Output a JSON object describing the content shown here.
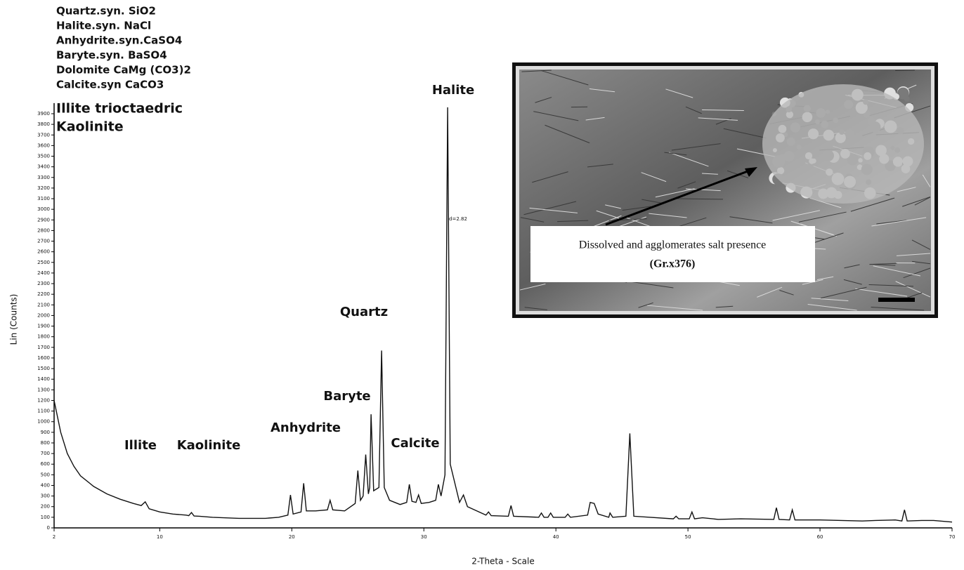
{
  "chart_data": {
    "type": "line",
    "phases": [
      "Quartz.syn. SiO2",
      "Halite.syn. NaCl",
      "Anhydrite.syn.CaSO4",
      "Baryte.syn. BaSO4",
      "Dolomite  CaMg (CO3)2",
      "Calcite.syn CaCO3",
      "Illite trioctaedric",
      "Kaolinite"
    ],
    "x_label": "2-Theta - Scale",
    "y_label": "Lin (Counts)",
    "annotations": [
      "Illite",
      "Kaolinite",
      "Anhydrite",
      "Baryte",
      "Quartz",
      "Calcite",
      "Halite",
      "d=2.82"
    ],
    "inset_caption": [
      "Dissolved and agglomerates salt presence",
      "(Gr.x376)"
    ],
    "color": "#111111",
    "xlim": [
      2,
      70
    ],
    "xticks": [
      2,
      10,
      20,
      30,
      40,
      50,
      60,
      70
    ],
    "ylim": [
      0,
      4000
    ],
    "yticks": [
      0,
      100,
      200,
      300,
      400,
      500,
      600,
      700,
      800,
      900,
      1000,
      1100,
      1200,
      1300,
      1400,
      1500,
      1600,
      1700,
      1800,
      1900,
      2000,
      2100,
      2200,
      2300,
      2400,
      2500,
      2600,
      2700,
      2800,
      2900,
      3000,
      3100,
      3200,
      3300,
      3400,
      3500,
      3600,
      3700,
      3800,
      3900
    ],
    "x": [
      2,
      2.5,
      3,
      3.5,
      4,
      5,
      6,
      7,
      8,
      8.6,
      8.9,
      9.2,
      10,
      11,
      12,
      12.2,
      12.4,
      12.6,
      13,
      14,
      16,
      18,
      19,
      19.7,
      19.9,
      20.1,
      20.7,
      20.9,
      21.1,
      21.8,
      22.7,
      22.9,
      23.1,
      24,
      24.8,
      25,
      25.2,
      25.4,
      25.6,
      25.8,
      25.9,
      26.0,
      26.2,
      26.6,
      26.8,
      27.0,
      27.4,
      28.2,
      28.7,
      28.9,
      29.1,
      29.4,
      29.6,
      29.8,
      30.4,
      30.9,
      31.1,
      31.3,
      31.6,
      31.8,
      32.0,
      32.7,
      33.0,
      33.3,
      34.7,
      34.9,
      35.1,
      36.4,
      36.6,
      36.8,
      38.7,
      38.9,
      39.1,
      39.4,
      39.6,
      39.8,
      40.7,
      40.9,
      41.1,
      42.4,
      42.6,
      42.9,
      43.2,
      44.0,
      44.1,
      44.3,
      45.3,
      45.6,
      45.9,
      48.9,
      49.1,
      49.3,
      50.1,
      50.3,
      50.5,
      51.1,
      52.3,
      54.0,
      56.5,
      56.7,
      56.9,
      57.7,
      57.9,
      58.1,
      60,
      63.2,
      64.2,
      65.7,
      66.2,
      66.4,
      66.6,
      67.7,
      68.6,
      70
    ],
    "values": [
      1200,
      900,
      700,
      580,
      490,
      390,
      320,
      270,
      230,
      210,
      245,
      180,
      150,
      130,
      120,
      115,
      145,
      112,
      110,
      100,
      90,
      90,
      100,
      120,
      310,
      130,
      150,
      420,
      160,
      160,
      170,
      260,
      170,
      160,
      230,
      540,
      260,
      300,
      690,
      320,
      380,
      1070,
      350,
      380,
      1670,
      380,
      260,
      220,
      240,
      410,
      250,
      240,
      310,
      230,
      240,
      260,
      410,
      300,
      500,
      3960,
      600,
      240,
      310,
      200,
      120,
      150,
      115,
      110,
      210,
      110,
      100,
      140,
      100,
      100,
      140,
      100,
      100,
      130,
      100,
      120,
      240,
      230,
      130,
      100,
      140,
      100,
      110,
      890,
      110,
      85,
      110,
      85,
      85,
      150,
      85,
      95,
      80,
      85,
      80,
      190,
      80,
      75,
      170,
      75,
      75,
      65,
      70,
      75,
      65,
      170,
      65,
      70,
      70,
      55
    ]
  }
}
